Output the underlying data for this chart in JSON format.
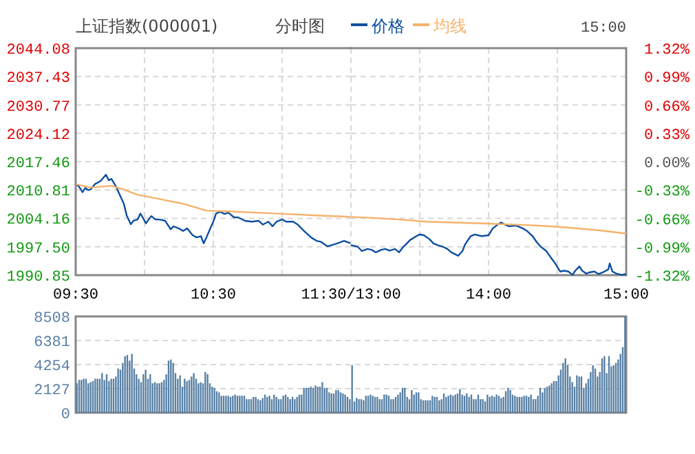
{
  "chart_data": [
    {
      "type": "line",
      "title": "上证指数(000001)",
      "subtitle": "分时图",
      "legend": "top",
      "marker": "none",
      "grid": true,
      "xlim": [
        9.5,
        11.5
      ],
      "xticks": [
        {
          "value": 9.5,
          "label": "09:30"
        },
        {
          "value": 10,
          "label": null
        },
        {
          "value": 10.5,
          "label": "10:30"
        },
        {
          "value": 11,
          "label": null
        },
        {
          "value": 11.5,
          "label": "11:30/13:00"
        }
      ],
      "ylim": [
        1990.85,
        2044.08
      ],
      "yticks": [
        1990.85,
        {
          "value": 1997.5,
          "label": "1997.50"
        },
        2004.16,
        2010.81,
        2017.46,
        2024.12,
        2030.77,
        2037.43,
        2044.08
      ],
      "series": [
        {
          "name": "价格",
          "color": "#0d4fa0",
          "x": [
            9.5,
            9.52,
            9.55,
            9.57,
            9.59,
            9.61,
            9.64,
            9.68,
            9.72,
            9.74,
            9.76,
            9.79,
            9.82,
            9.85,
            9.87,
            9.9,
            9.92,
            9.95,
            9.97,
            9.99,
            10.01,
            10.03,
            10.05,
            10.08,
            10.11,
            10.15,
            10.19,
            10.21,
            10.25,
            10.28,
            10.31,
            10.35,
            10.38,
            10.41,
            10.43,
            10.45,
            10.47,
            10.5,
            10.52,
            10.55,
            10.58,
            10.61,
            10.65,
            10.68,
            10.73,
            10.78,
            10.83,
            10.86,
            10.9,
            10.93,
            10.96,
            11,
            11.03,
            11.08,
            11.11,
            11.16,
            11.21,
            11.25,
            11.28,
            11.33,
            11.36,
            11.4,
            11.45,
            11.5
          ],
          "values": [
            2012.2,
            2011.8,
            2010.3,
            2011.3,
            2010.8,
            2011.0,
            2012.2,
            2012.9,
            2014.4,
            2013.1,
            2013.4,
            2011.8,
            2009.7,
            2007.6,
            2004.9,
            2002.8,
            2003.6,
            2003.9,
            2005.3,
            2004.2,
            2003.0,
            2003.9,
            2004.7,
            2003.9,
            2003.9,
            2003.6,
            2001.6,
            2002.3,
            2001.8,
            2001.2,
            2001.8,
            2000.2,
            1999.7,
            2000.0,
            1998.3,
            1999.7,
            2001.2,
            2003.4,
            2005.3,
            2005.7,
            2005.2,
            2005.5,
            2004.4,
            2004.4,
            2003.6,
            2003.4,
            2003.6,
            2002.7,
            2003.4,
            2002.3,
            2003.4,
            2003.9,
            2003.4,
            2003.4,
            2002.8,
            2001.2,
            1999.7,
            1998.9,
            1998.7,
            1997.6,
            1997.9,
            1998.3,
            1998.9,
            1998.3
          ]
        },
        {
          "name": "均线",
          "color": "#f5b26b",
          "x": [
            9.5,
            9.61,
            9.76,
            9.85,
            9.95,
            10.11,
            10.28,
            10.45,
            10.61,
            10.95,
            11.28,
            11.45,
            11.5
          ],
          "values": [
            2012.2,
            2011.4,
            2011.8,
            2010.9,
            2009.7,
            2008.7,
            2007.6,
            2006.0,
            2005.8,
            2005.3,
            2004.8,
            2004.6,
            2004.5
          ]
        }
      ]
    },
    {
      "type": "line",
      "annotations": [
        "15:00"
      ],
      "marker": "none",
      "grid": true,
      "tick_labels": "x",
      "xlim": [
        13,
        15
      ],
      "xticks": [
        {
          "value": 13,
          "label": null
        },
        {
          "value": 13.5,
          "label": null
        },
        {
          "value": 14,
          "label": "14:00"
        },
        {
          "value": 14.5,
          "label": null
        },
        {
          "value": 15,
          "label": "15:00"
        }
      ],
      "ylim": [
        1990.85,
        2044.08
      ],
      "yticks": [
        1990.85,
        1997.5,
        2004.16,
        2010.81,
        2017.46,
        2024.12,
        2030.77,
        2037.43,
        2044.08
      ],
      "y2lim": [
        -1.32,
        1.32
      ],
      "y2ticks": [
        {
          "value": -1.32,
          "label": "-1.32%"
        },
        {
          "value": -0.99,
          "label": "-0.99%"
        },
        {
          "value": -0.66,
          "label": "-0.66%"
        },
        {
          "value": -0.33,
          "label": "-0.33%"
        },
        {
          "value": 0,
          "label": "0.00%"
        },
        {
          "value": 0.33,
          "label": "0.33%"
        },
        {
          "value": 0.66,
          "label": "0.66%"
        },
        {
          "value": 0.99,
          "label": "0.99%"
        },
        {
          "value": 1.32,
          "label": "1.32%"
        }
      ],
      "series": [
        {
          "color": "#0d4fa0",
          "x": [
            13,
            13.05,
            13.08,
            13.12,
            13.15,
            13.18,
            13.22,
            13.25,
            13.28,
            13.32,
            13.35,
            13.38,
            13.4,
            13.43,
            13.47,
            13.5,
            13.53,
            13.57,
            13.6,
            13.63,
            13.67,
            13.7,
            13.73,
            13.78,
            13.81,
            13.83,
            13.87,
            13.9,
            13.95,
            14,
            14.03,
            14.07,
            14.09,
            14.12,
            14.15,
            14.2,
            14.25,
            14.28,
            14.32,
            14.35,
            14.38,
            14.42,
            14.45,
            14.48,
            14.52,
            14.55,
            14.58,
            14.61,
            14.63,
            14.66,
            14.68,
            14.71,
            14.73,
            14.77,
            14.8,
            14.83,
            14.87,
            14.88,
            14.9,
            14.93,
            14.97,
            14.99,
            15
          ],
          "values": [
            1997.9,
            1997.5,
            1996.5,
            1997.0,
            1996.8,
            1996.2,
            1996.8,
            1997.0,
            1996.6,
            1997.0,
            1996.2,
            1997.5,
            1998.1,
            1999.1,
            1999.9,
            2000.4,
            2000.2,
            1999.3,
            1998.3,
            1997.9,
            1997.5,
            1997.0,
            1996.2,
            1995.4,
            1996.5,
            1998.1,
            2000.0,
            2000.4,
            2000.0,
            2000.2,
            2001.8,
            2002.8,
            2003.2,
            2002.7,
            2002.3,
            2002.5,
            2001.8,
            2001.2,
            2000.0,
            1998.6,
            1997.5,
            1996.5,
            1995.1,
            1993.8,
            1991.7,
            1991.9,
            1991.7,
            1990.9,
            1991.9,
            1992.9,
            1991.9,
            1991.2,
            1991.5,
            1991.7,
            1991.1,
            1991.5,
            1992.2,
            1993.6,
            1991.7,
            1991.2,
            1990.9,
            1991.1,
            1990.9
          ]
        },
        {
          "color": "#f5b26b",
          "x": [
            13,
            13.15,
            13.35,
            13.55,
            13.75,
            13.95,
            14.28,
            14.45,
            14.62,
            14.82,
            15
          ],
          "values": [
            2004.5,
            2004.3,
            2003.9,
            2003.4,
            2003.2,
            2003.0,
            2002.6,
            2002.3,
            2001.9,
            2001.3,
            2000.6
          ]
        }
      ]
    },
    {
      "type": "bar",
      "color": "#557ea3",
      "grid": "y",
      "tick_labels": "y",
      "ylim": [
        0,
        8508
      ],
      "yticks": [
        0,
        2127,
        4254,
        6381,
        8508
      ],
      "categories": [
        null,
        null,
        null,
        null,
        null,
        null,
        null,
        null,
        null,
        null,
        null,
        null,
        null,
        null,
        null,
        null,
        null,
        null,
        null,
        null,
        null,
        null,
        null,
        null,
        null,
        null,
        null,
        null,
        null,
        null,
        null,
        null,
        null,
        null,
        null,
        null,
        null,
        null,
        null,
        null,
        null,
        null,
        null,
        null,
        null,
        null,
        null,
        null,
        null,
        null,
        null,
        null,
        null,
        null,
        null,
        null,
        null,
        null,
        null,
        null,
        null,
        null,
        null,
        null,
        null,
        null,
        null,
        null,
        null,
        null,
        null,
        null,
        null,
        null,
        null,
        null,
        null,
        null,
        null,
        null,
        null,
        null,
        null,
        null,
        null,
        null,
        null,
        null,
        null,
        null,
        null,
        null,
        null,
        null,
        null,
        null,
        null,
        null,
        null,
        null,
        null,
        null,
        null,
        null,
        null,
        null,
        null,
        null,
        null,
        null,
        null,
        null,
        null,
        null,
        null,
        null,
        null,
        null,
        null,
        null,
        null,
        null,
        null,
        null,
        null,
        null,
        null,
        null,
        null,
        null,
        null,
        null,
        null,
        null,
        null,
        null,
        null,
        null,
        null,
        null,
        null,
        null,
        null,
        null,
        null,
        null,
        null,
        null,
        null,
        null,
        null,
        null,
        null,
        null,
        null,
        null,
        null,
        null,
        null,
        null,
        null,
        null,
        null,
        null,
        null,
        null,
        null,
        null,
        null,
        null,
        null,
        null,
        null,
        null,
        null,
        null,
        null,
        null,
        null,
        null,
        null,
        null,
        null,
        null,
        null,
        null,
        null,
        null,
        null,
        null,
        null,
        null,
        null,
        null,
        null,
        null,
        null,
        null,
        null,
        null,
        null,
        null,
        null,
        null,
        null,
        null,
        null,
        null,
        null,
        null,
        null,
        null,
        null,
        null,
        null,
        null,
        null,
        null,
        null,
        null,
        null,
        null,
        null,
        null,
        null,
        null,
        null,
        null,
        null,
        null,
        null,
        null,
        null,
        null,
        null,
        null,
        null,
        null,
        null,
        null
      ],
      "values": [
        2600,
        2900,
        2900,
        3000,
        3000,
        2600,
        2700,
        2800,
        3000,
        3000,
        3000,
        3500,
        2900,
        3400,
        2800,
        3000,
        3000,
        3200,
        3900,
        3800,
        4400,
        5000,
        5100,
        4600,
        5200,
        3900,
        3400,
        3000,
        2700,
        3400,
        3800,
        3000,
        3400,
        2600,
        2700,
        2600,
        2600,
        2700,
        2900,
        3400,
        4600,
        4700,
        4400,
        3500,
        3000,
        3300,
        2300,
        3000,
        2800,
        2900,
        3200,
        3500,
        3000,
        2600,
        2700,
        2600,
        3600,
        3400,
        2600,
        2300,
        2200,
        1900,
        1800,
        1500,
        1500,
        1500,
        1500,
        1400,
        1500,
        1600,
        1500,
        1500,
        1500,
        1500,
        1200,
        1200,
        1200,
        1400,
        1400,
        1200,
        1100,
        1300,
        1600,
        1400,
        1500,
        1200,
        1600,
        1400,
        1200,
        1200,
        1500,
        1600,
        1400,
        1200,
        1400,
        1200,
        1400,
        1600,
        1600,
        2200,
        2200,
        2200,
        2300,
        2200,
        2400,
        2300,
        2300,
        2700,
        2200,
        2200,
        1800,
        1700,
        1700,
        2000,
        2000,
        1800,
        1700,
        1600,
        1400,
        1200,
        4200,
        1000,
        1300,
        1200,
        1200,
        1100,
        1500,
        1500,
        1600,
        1500,
        1400,
        1400,
        1200,
        1200,
        1600,
        1600,
        1500,
        1200,
        1200,
        1400,
        1600,
        1800,
        2200,
        2200,
        1400,
        1200,
        2000,
        1600,
        1800,
        1800,
        1200,
        1100,
        1100,
        1100,
        1100,
        1500,
        1400,
        1400,
        1100,
        1200,
        1700,
        1400,
        1500,
        1600,
        1500,
        1600,
        1700,
        2100,
        1600,
        1500,
        1700,
        1400,
        1600,
        1200,
        1200,
        1600,
        1200,
        1200,
        1000,
        1600,
        1400,
        1500,
        1400,
        1600,
        1500,
        1300,
        1400,
        1900,
        2200,
        2000,
        1600,
        1500,
        1400,
        1400,
        1400,
        1500,
        1500,
        1400,
        1600,
        1200,
        1200,
        1500,
        2200,
        1800,
        2200,
        2300,
        2400,
        2600,
        2800,
        2800,
        3300,
        3800,
        4400,
        4800,
        4200,
        3200,
        2700,
        2300,
        3300,
        3200,
        3200,
        2200,
        2600,
        3000,
        3600,
        4200,
        3900,
        3200,
        3600,
        4800,
        5000,
        3500,
        5000,
        4100,
        4200,
        4400,
        4700,
        5200,
        5800,
        8500
      ]
    }
  ]
}
